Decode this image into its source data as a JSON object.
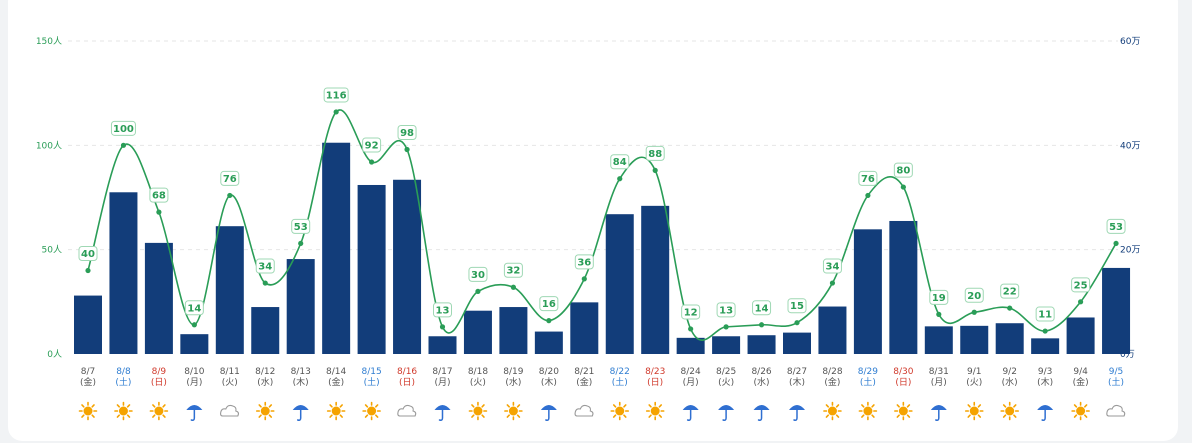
{
  "chart_data": {
    "type": "bar+line",
    "categories": [
      "8/7",
      "8/8",
      "8/9",
      "8/10",
      "8/11",
      "8/12",
      "8/13",
      "8/14",
      "8/15",
      "8/16",
      "8/17",
      "8/18",
      "8/19",
      "8/20",
      "8/21",
      "8/22",
      "8/23",
      "8/24",
      "8/25",
      "8/26",
      "8/27",
      "8/28",
      "8/29",
      "8/30",
      "8/31",
      "9/1",
      "9/2",
      "9/3",
      "9/4",
      "9/5"
    ],
    "weekdays": [
      "(金)",
      "(土)",
      "(日)",
      "(月)",
      "(火)",
      "(水)",
      "(木)",
      "(金)",
      "(土)",
      "(日)",
      "(月)",
      "(火)",
      "(水)",
      "(木)",
      "(金)",
      "(土)",
      "(日)",
      "(月)",
      "(火)",
      "(水)",
      "(木)",
      "(金)",
      "(土)",
      "(日)",
      "(月)",
      "(火)",
      "(水)",
      "(木)",
      "(金)",
      "(土)"
    ],
    "day_types": [
      "wd",
      "sat",
      "sun",
      "wd",
      "wd",
      "wd",
      "wd",
      "wd",
      "sat",
      "sun",
      "wd",
      "wd",
      "wd",
      "wd",
      "wd",
      "sat",
      "sun",
      "wd",
      "wd",
      "wd",
      "wd",
      "wd",
      "sat",
      "sun",
      "wd",
      "wd",
      "wd",
      "wd",
      "wd",
      "sat"
    ],
    "weather": [
      "sunny",
      "sunny",
      "sunny",
      "rainy",
      "cloudy",
      "sunny",
      "rainy",
      "sunny",
      "sunny",
      "cloudy",
      "rainy",
      "sunny",
      "sunny",
      "rainy",
      "cloudy",
      "sunny",
      "sunny",
      "rainy",
      "rainy",
      "rainy",
      "rainy",
      "sunny",
      "sunny",
      "sunny",
      "rainy",
      "sunny",
      "sunny",
      "rainy",
      "sunny",
      "cloudy"
    ],
    "series": [
      {
        "type": "line",
        "axis": "left",
        "values": [
          40,
          100,
          68,
          14,
          76,
          34,
          53,
          116,
          92,
          98,
          13,
          30,
          32,
          16,
          36,
          84,
          88,
          12,
          13,
          14,
          15,
          34,
          76,
          80,
          19,
          20,
          22,
          11,
          25,
          53
        ]
      },
      {
        "type": "bar",
        "axis": "right",
        "values": [
          11.2,
          31,
          21.3,
          3.8,
          24.5,
          9,
          18.2,
          40.5,
          32.4,
          33.4,
          3.4,
          8.3,
          9,
          4.3,
          9.9,
          26.8,
          28.4,
          3.1,
          3.4,
          3.6,
          4.1,
          9.1,
          23.9,
          25.5,
          5.3,
          5.4,
          5.9,
          3,
          7,
          16.5
        ]
      }
    ],
    "left_axis": {
      "ticks": [
        "0人",
        "50人",
        "100人",
        "150人"
      ],
      "range": [
        0,
        150
      ]
    },
    "right_axis": {
      "ticks": [
        "0万",
        "20万",
        "40万",
        "60万"
      ],
      "range": [
        0,
        60
      ]
    }
  },
  "colors": {
    "bar": "#123d7a",
    "line": "#2a9d57",
    "saturday": "#2f7dd1",
    "sunday": "#d0392b",
    "weekday": "#555555",
    "sun_icon": "#f5a300",
    "umbrella_icon": "#2f6fd1",
    "cloud_icon": "#9a9a9a"
  }
}
